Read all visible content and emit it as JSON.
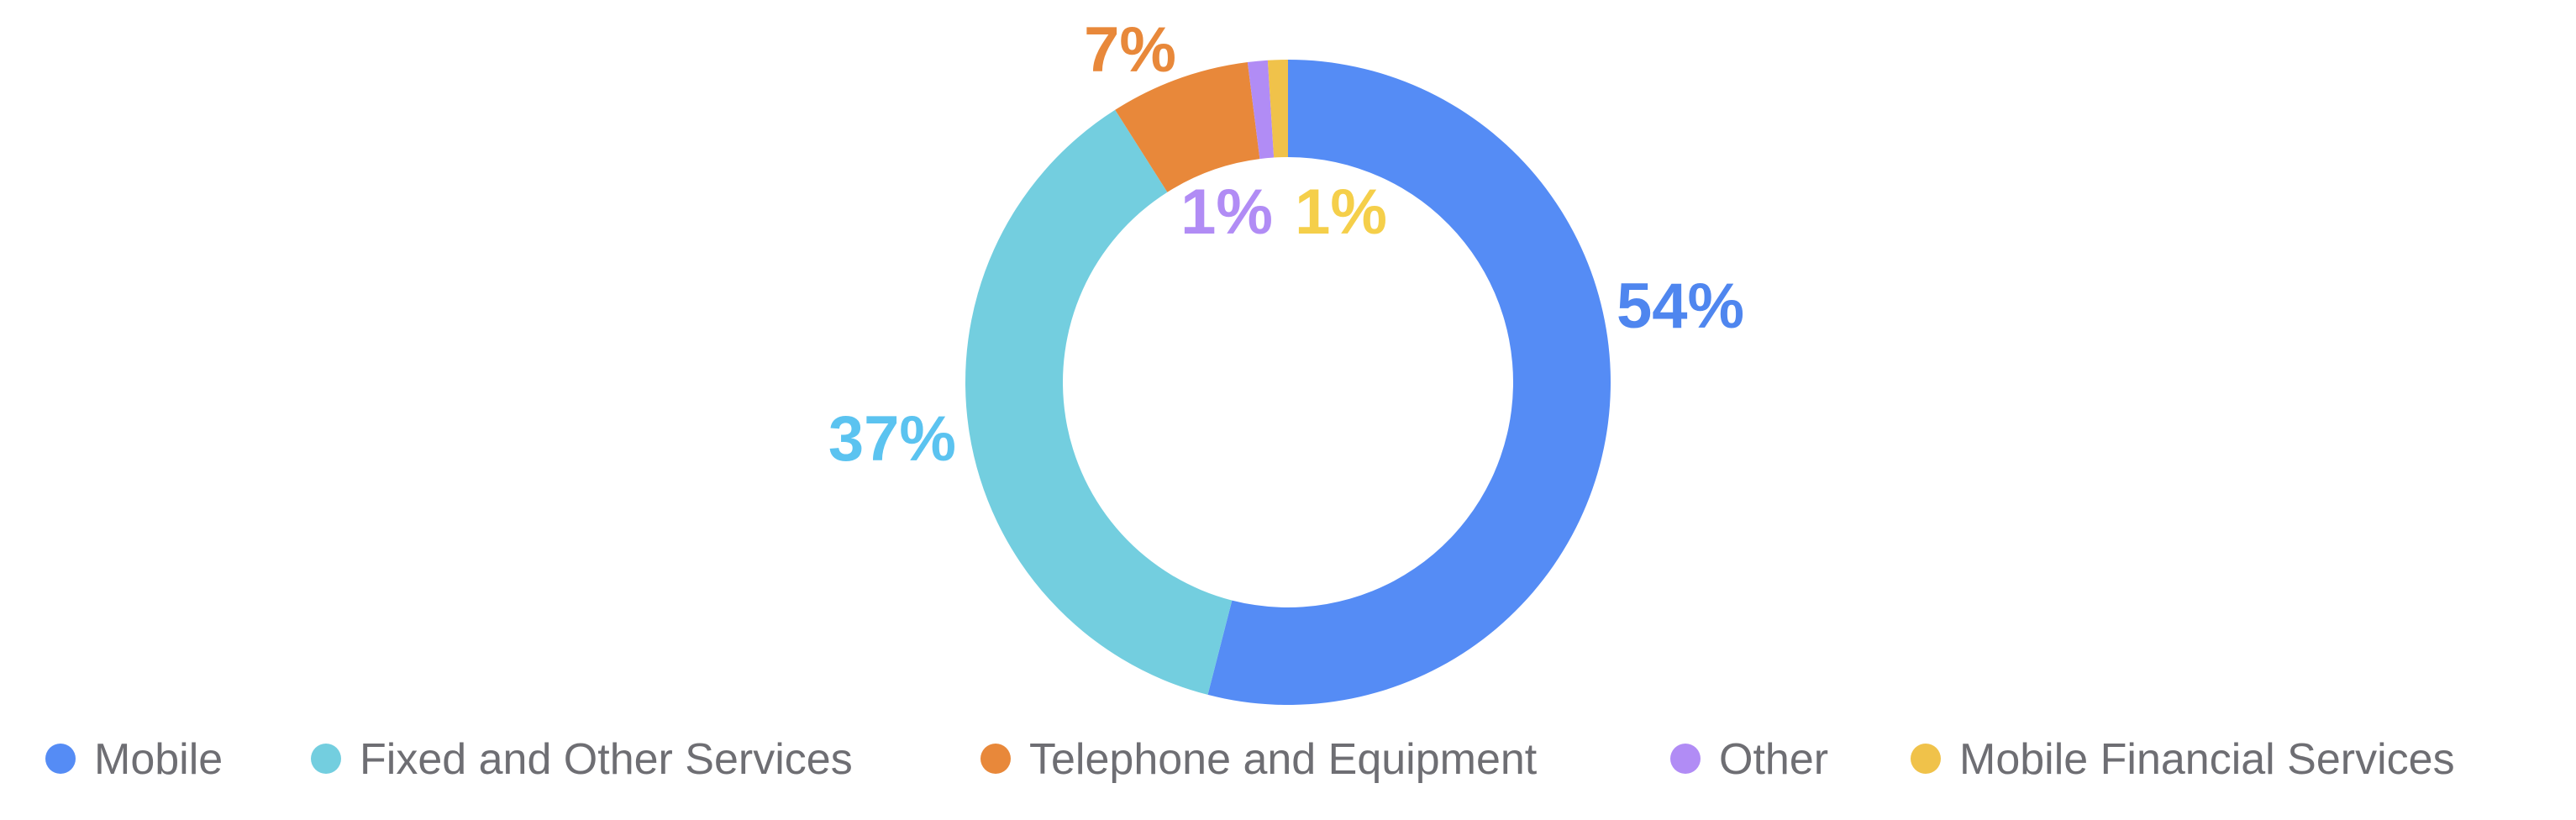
{
  "chart_data": {
    "type": "pie",
    "style": "donut",
    "legend_position": "bottom",
    "series": [
      {
        "name": "Mobile",
        "value": 54,
        "label": "54%",
        "color": "#558cf5"
      },
      {
        "name": "Fixed and Other Services",
        "value": 37,
        "label": "37%",
        "color": "#73cedf"
      },
      {
        "name": "Telephone and Equipment",
        "value": 7,
        "label": "7%",
        "color": "#e8883a"
      },
      {
        "name": "Other",
        "value": 1,
        "label": "1%",
        "color": "#b18cf5"
      },
      {
        "name": "Mobile Financial Services",
        "value": 1,
        "label": "1%",
        "color": "#f0c24a"
      }
    ],
    "label_colors": {
      "Mobile": "#4f86ef",
      "Fixed and Other Services": "#5bc3f0",
      "Telephone and Equipment": "#e8883a",
      "Other": "#b18cf5",
      "Mobile Financial Services": "#f5cf4a"
    }
  }
}
